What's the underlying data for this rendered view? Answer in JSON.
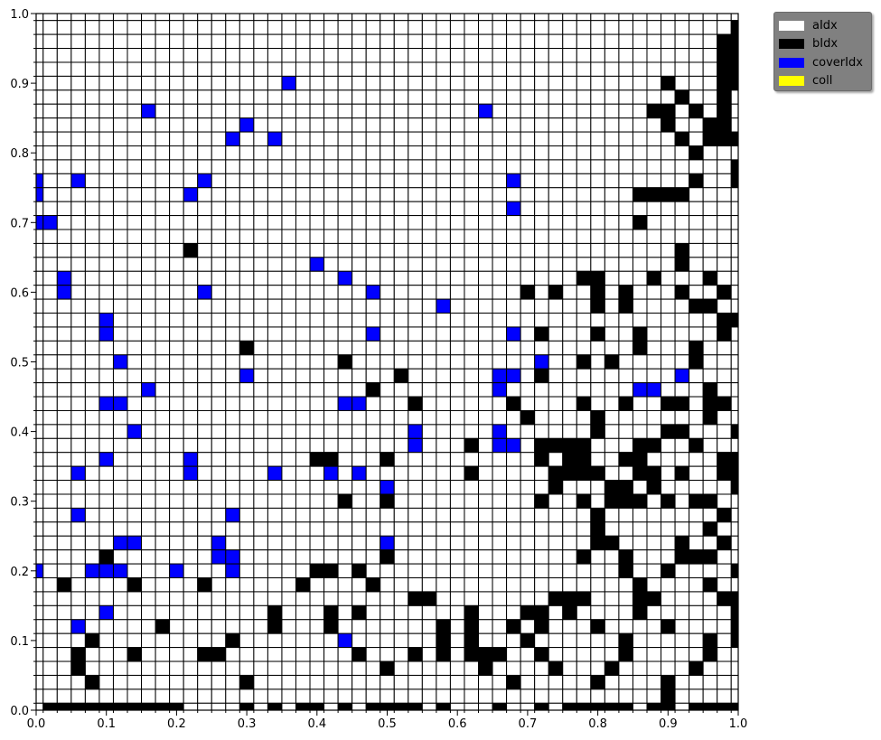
{
  "chart_data": {
    "type": "heatmap",
    "xlim": [
      0,
      1
    ],
    "ylim": [
      0,
      1
    ],
    "grid": true,
    "grid_size": [
      51,
      51
    ],
    "cell_size": 0.02,
    "x_ticks": [
      "0.0",
      "0.1",
      "0.2",
      "0.3",
      "0.4",
      "0.5",
      "0.6",
      "0.7",
      "0.8",
      "0.9",
      "1.0"
    ],
    "y_ticks": [
      "0.0",
      "0.1",
      "0.2",
      "0.3",
      "0.4",
      "0.5",
      "0.6",
      "0.7",
      "0.8",
      "0.9",
      "1.0"
    ],
    "legend_position": "outside-top-right",
    "colors": {
      "aIdx": "#ffffff",
      "bIdx": "#000000",
      "coverIdx": "#0000ff",
      "coll": "#ffff00"
    },
    "legend": [
      {
        "label": "aIdx",
        "color": "#ffffff"
      },
      {
        "label": "bIdx",
        "color": "#000000"
      },
      {
        "label": "coverIdx",
        "color": "#0000ff"
      },
      {
        "label": "coll",
        "color": "#ffff00"
      }
    ],
    "cell_legend": {
      ".": "aIdx",
      "#": "bIdx",
      "B": "coverIdx",
      "C": "coll"
    },
    "rows_top_down": [
      "...................................................",
      "..................................................#",
      ".................................................##",
      ".................................................##",
      ".................................................##",
      "..................B..........................#...##",
      "..............................................#..#.",
      "........B.......................B...........##.#.#.",
      "...............B.............................#..##.",
      "..............B..B............................#.###",
      "...............................................#...",
      "..................................................#",
      "B..B........B.....................B............#..#",
      "B..........B...............................####....#",
      "..................................B.................",
      "BB.........................................#.......#",
      "...................................................",
      "...........#..................................#....",
      "....................B.........................#.....",
      "..B...................B................##...#...#..",
      "..B.........B...........B..........#.#..#.#...#..#.",
      ".............................B..........#.#....##..#",
      ".....B...........................................##",
      ".....B..................B.........B.#...#..#.....#.",
      "...............#...........................#...#...",
      "......B...............#.............B..#.#.....#...",
      "...............B..........#......BB.#.........B....",
      "........B...............#........B.........BB...#..",
      ".....BB...............BB...#......#....#..#..##.##.",
      "...................................#....#.......#..",
      ".......B...................B.....B......#....##...#",
      "...........................B...#.BB.####...##..#...",
      ".....B.....B........##...#..........#.##..##.....##",
      "...B.......B.....B...B.B.......#.....####..##.#..##",
      ".........................B...........#...##.#.....#",
      "......................#..#..........#..#.###.#.##..",
      "...B..........B.........................#........#.",
      "........................................#.......#..",
      "......BB.....B...........B..............##....#..#.",
      ".....#.......BB..........#.............#..#...###..",
      "B...BBB...B...B.....##.#..................#..#....#",
      "..#....#....#......#....#..................#....#..",
      "...........................##........###...##....##",
      ".....B...........#...#.#.......#...##.#....#......#",
      "...B.....#.......#...#.......#.#..#.#...#....#....#",
      "....#.........#.......B......#.#...#......#.....#.#",
      "...#...#....##.........#...#.#.###..#.....#.....#..",
      "...#.....................#......#....#...#.....#...",
      "....#..........#..................#.....#....#.....",
      ".............................................#.....",
      ".##########....#.#.##.#.####.#...#..#.#####.##.####"
    ]
  }
}
